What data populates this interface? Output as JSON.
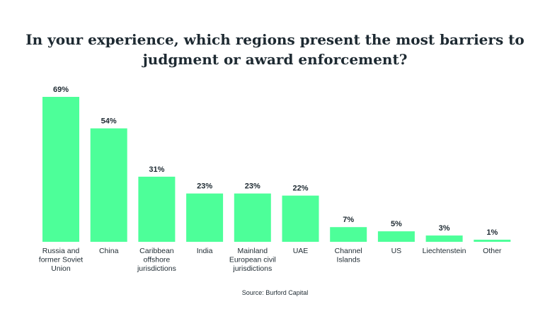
{
  "title_lines": [
    "In your experience, which regions present the most barriers to",
    "judgment or award enforcement?"
  ],
  "source": "Source: Burford Capital",
  "colors": {
    "bar": "#4dff99",
    "text": "#1e2a32"
  },
  "chart_data": {
    "type": "bar",
    "title": "In your experience, which regions present the most barriers to judgment or award enforcement?",
    "categories": [
      [
        "Russia and",
        "former Soviet",
        "Union"
      ],
      [
        "China"
      ],
      [
        "Caribbean",
        "offshore",
        "jurisdictions"
      ],
      [
        "India"
      ],
      [
        "Mainland",
        "European civil",
        "jurisdictions"
      ],
      [
        "UAE"
      ],
      [
        "Channel",
        "Islands"
      ],
      [
        "US"
      ],
      [
        "Liechtenstein"
      ],
      [
        "Other"
      ]
    ],
    "values": [
      69,
      54,
      31,
      23,
      23,
      22,
      7,
      5,
      3,
      1
    ],
    "value_labels": [
      "69%",
      "54%",
      "31%",
      "23%",
      "23%",
      "22%",
      "7%",
      "5%",
      "3%",
      "1%"
    ],
    "ylim": [
      0,
      69
    ],
    "grid": false,
    "legend": "none"
  }
}
